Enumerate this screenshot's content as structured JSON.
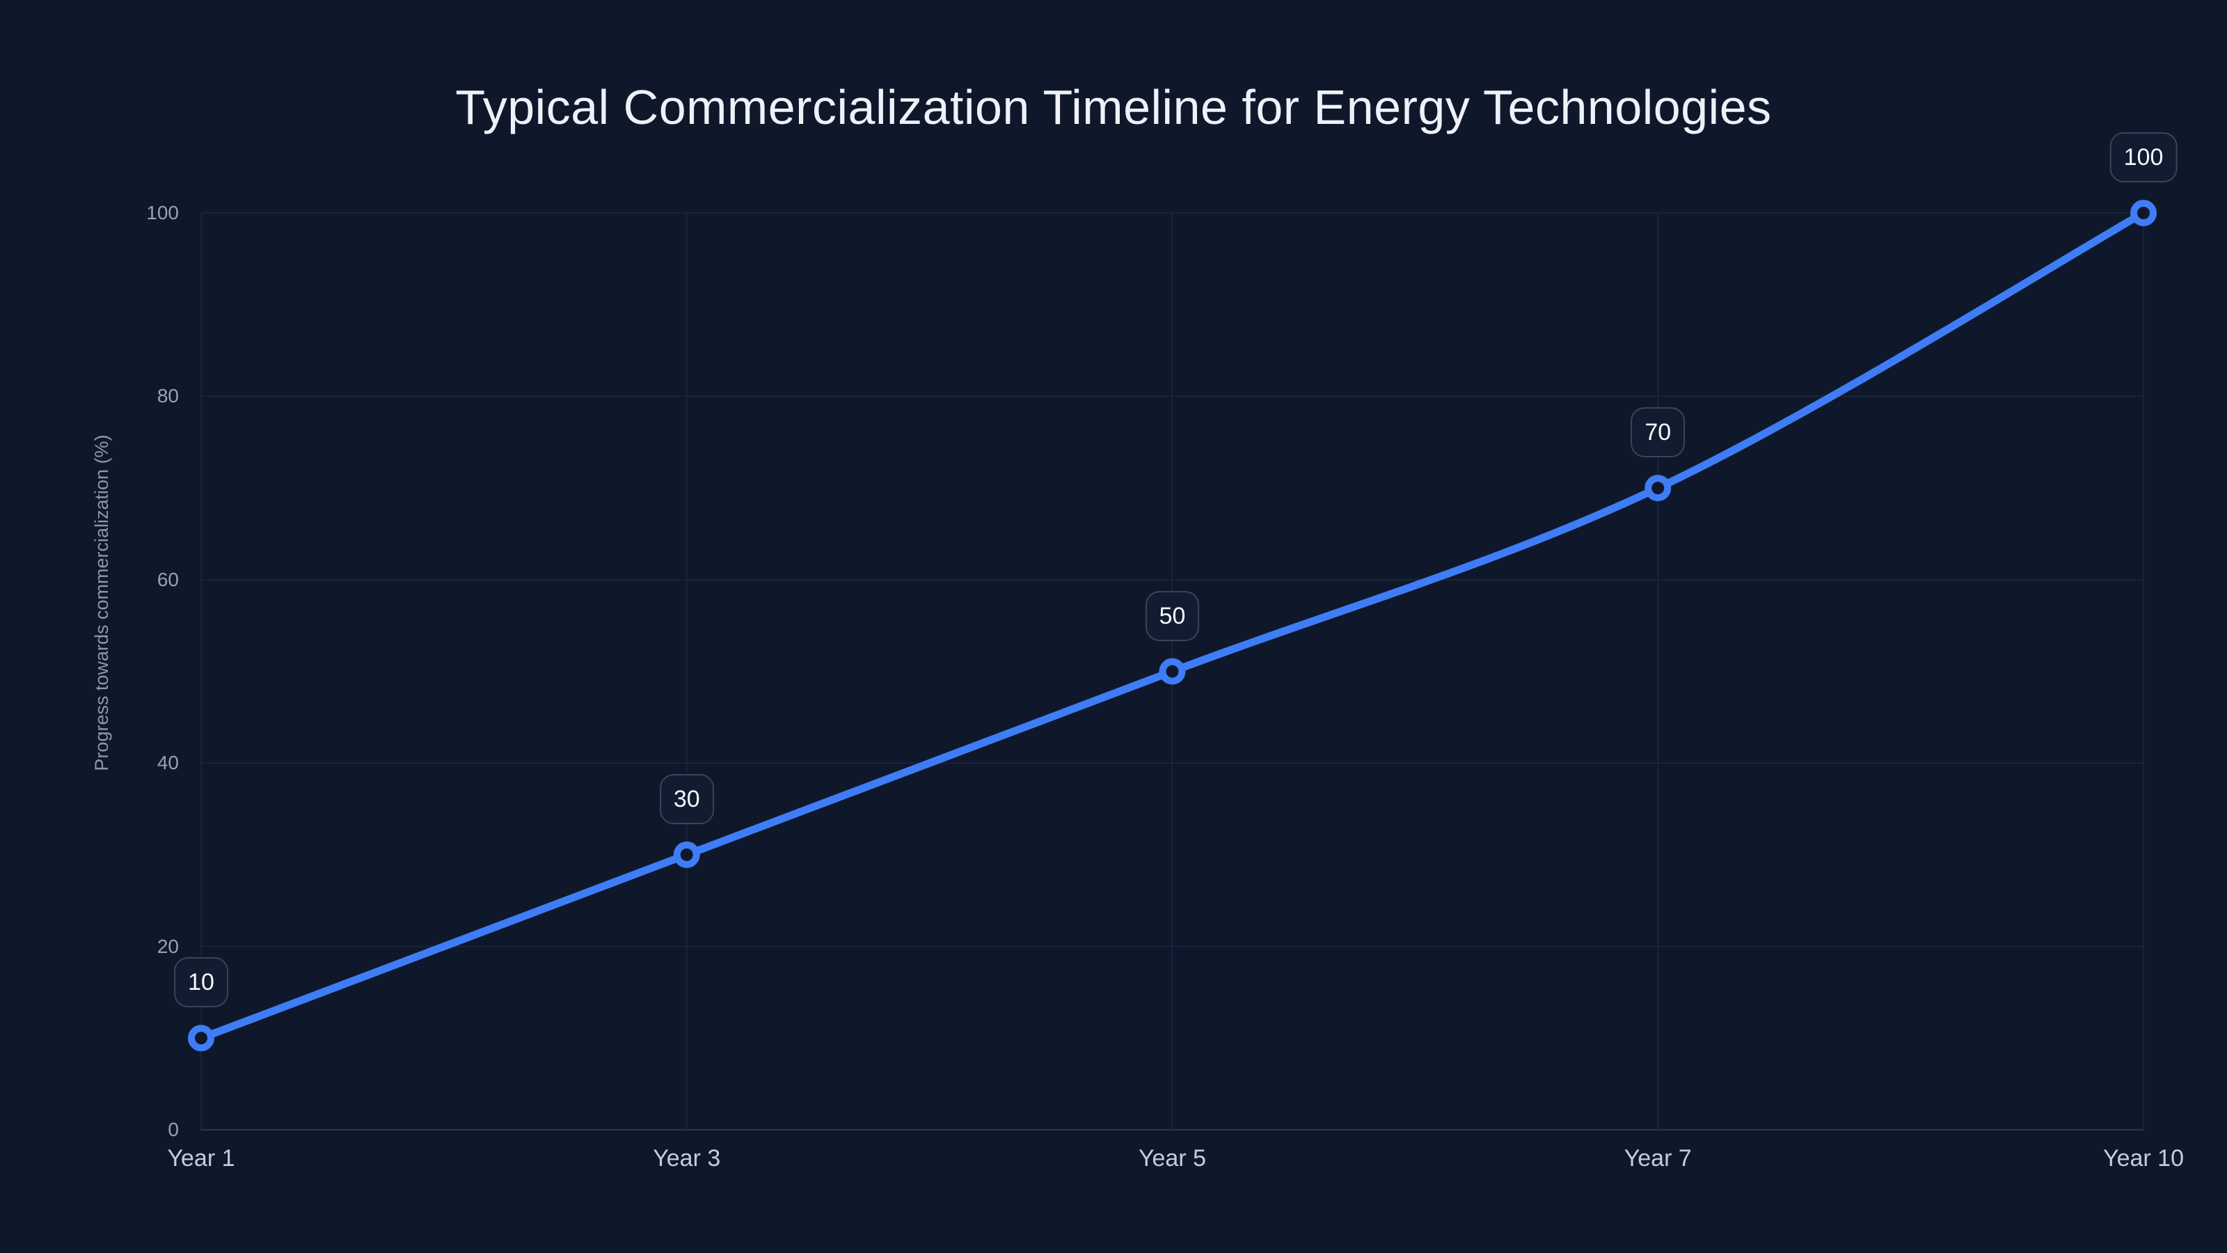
{
  "chart_data": {
    "type": "line",
    "title": "Typical Commercialization Timeline for Energy Technologies",
    "ylabel": "Progress towards commercialization (%)",
    "xlabel": "",
    "categories": [
      "Year 1",
      "Year 3",
      "Year 5",
      "Year 7",
      "Year 10"
    ],
    "values": [
      10,
      30,
      50,
      70,
      100
    ],
    "yticks": [
      0,
      20,
      40,
      60,
      80,
      100
    ],
    "ylim": [
      0,
      100
    ],
    "grid": true,
    "legend": "none",
    "line_smooth": true,
    "colors": {
      "background": "#0f182b",
      "line": "#3f7df6",
      "marker_ring": "#3f7df6",
      "marker_fill": "#0f182b",
      "grid_line": "#1c2740",
      "axis_line": "#2b3750",
      "y_tick_text": "#96a1b5",
      "x_tick_text": "#c5cdda",
      "axis_title_text": "#8c97ab",
      "title_text": "#eef2f8",
      "label_box_bg": "#121c31",
      "label_box_border": "#3a4459",
      "label_text": "#f5f7fb"
    }
  }
}
